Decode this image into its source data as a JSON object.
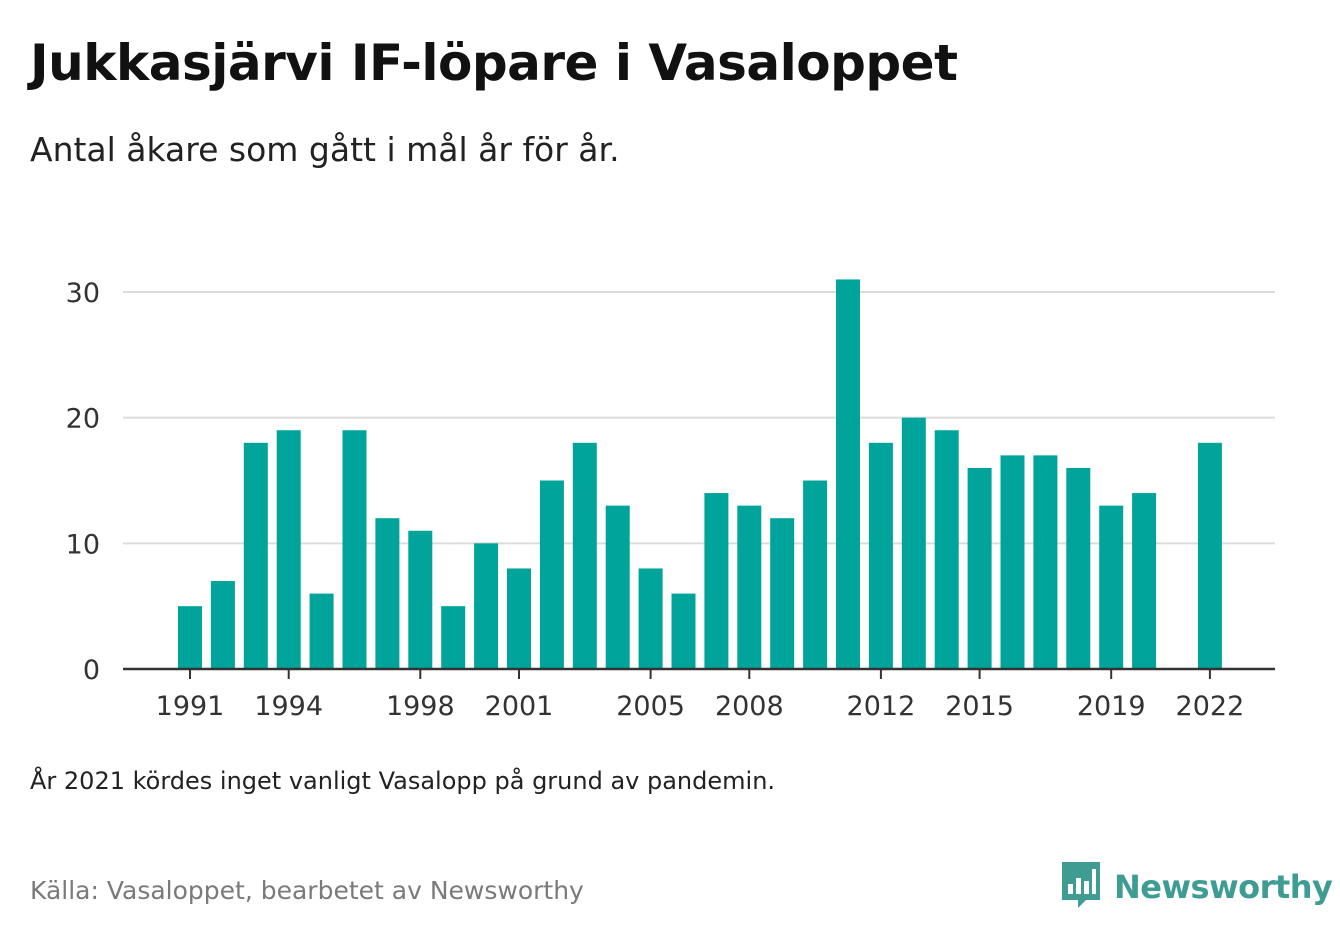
{
  "header": {
    "title": "Jukkasjärvi IF-löpare i Vasaloppet",
    "subtitle": "Antal åkare som gått i mål år för år."
  },
  "footer": {
    "note": "År 2021 kördes inget vanligt Vasalopp på grund av pandemin.",
    "source": "Källa: Vasaloppet, bearbetet av Newsworthy",
    "brand": "Newsworthy",
    "brand_icon": "bar-chart-speech-bubble-icon"
  },
  "colors": {
    "bar": "#00a49a",
    "grid": "#dcdcdc",
    "axis": "#333333",
    "brand": "#3e9c93"
  },
  "chart_data": {
    "type": "bar",
    "title": "Jukkasjärvi IF-löpare i Vasaloppet",
    "subtitle": "Antal åkare som gått i mål år för år.",
    "xlabel": "",
    "ylabel": "",
    "ylim": [
      0,
      30
    ],
    "yticks": [
      0,
      10,
      20,
      30
    ],
    "grid": true,
    "xtick_labels": [
      "1991",
      "1994",
      "1998",
      "2001",
      "2005",
      "2008",
      "2012",
      "2015",
      "2019",
      "2022"
    ],
    "categories": [
      1991,
      1992,
      1993,
      1994,
      1995,
      1996,
      1997,
      1998,
      1999,
      2000,
      2001,
      2002,
      2003,
      2004,
      2005,
      2006,
      2007,
      2008,
      2009,
      2010,
      2011,
      2012,
      2013,
      2014,
      2015,
      2016,
      2017,
      2018,
      2019,
      2020,
      2021,
      2022
    ],
    "values": [
      5,
      7,
      18,
      19,
      6,
      19,
      12,
      11,
      5,
      10,
      8,
      15,
      18,
      13,
      8,
      6,
      14,
      13,
      12,
      15,
      31,
      18,
      20,
      19,
      16,
      17,
      17,
      16,
      13,
      14,
      null,
      18
    ]
  }
}
